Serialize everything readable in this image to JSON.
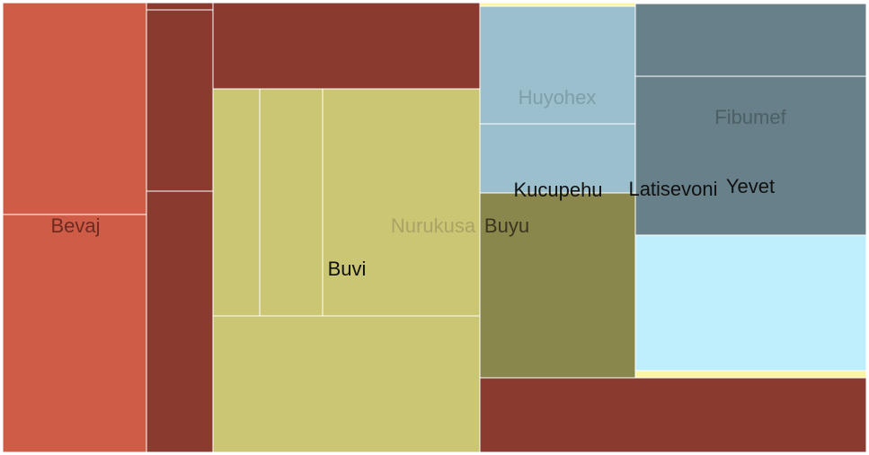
{
  "chart_data": {
    "type": "treemap",
    "title": "",
    "groups": [
      {
        "name": "Bevaj",
        "color": "#cf5c47",
        "label_color": "#6f2a20",
        "leaves": [
          {
            "name": "",
            "value": 42
          },
          {
            "name": "",
            "value": 51
          }
        ]
      },
      {
        "name": "",
        "color": "#8a3a2f",
        "label_color": "#000000",
        "leaves": [
          {
            "name": "",
            "value": 1.2
          },
          {
            "name": "",
            "value": 18.7
          },
          {
            "name": "",
            "value": 26.5
          },
          {
            "name": "",
            "value": 33.5
          },
          {
            "name": "",
            "value": 31.3
          }
        ]
      },
      {
        "name": "Nurukusa",
        "color": "#cbc674",
        "label_color": "#a9a465",
        "leaves": [
          {
            "name": "",
            "value": 15.8
          },
          {
            "name": "",
            "value": 21.3
          },
          {
            "name": "Buvi",
            "value": 53.3
          },
          {
            "name": "",
            "value": 53.4
          }
        ]
      },
      {
        "name": "Huyohex",
        "color": "#9bbfcd",
        "label_color": "#7e9faa",
        "leaves": [
          {
            "name": "",
            "value": 0.6
          },
          {
            "name": "",
            "value": 27.1
          },
          {
            "name": "Kucupehu",
            "value": 15.7
          }
        ]
      },
      {
        "name": "Buyu",
        "color": "#8a874d",
        "label_color": "#3a3420",
        "leaves": [
          {
            "name": "",
            "value": 42.7
          }
        ]
      },
      {
        "name": "Fibumef",
        "color": "#688089",
        "label_color": "#4c5f65",
        "leaves": [
          {
            "name": "",
            "value": 0.2
          },
          {
            "name": "",
            "value": 97.3
          },
          {
            "name": "Latisevoni",
            "value": 61.8
          },
          {
            "name": "Yevet",
            "value": 1.0
          }
        ]
      },
      {
        "name": "",
        "color": "#bfeefd",
        "label_color": "#000000",
        "leaves": [
          {
            "name": "",
            "value": 59.7
          }
        ]
      }
    ]
  }
}
